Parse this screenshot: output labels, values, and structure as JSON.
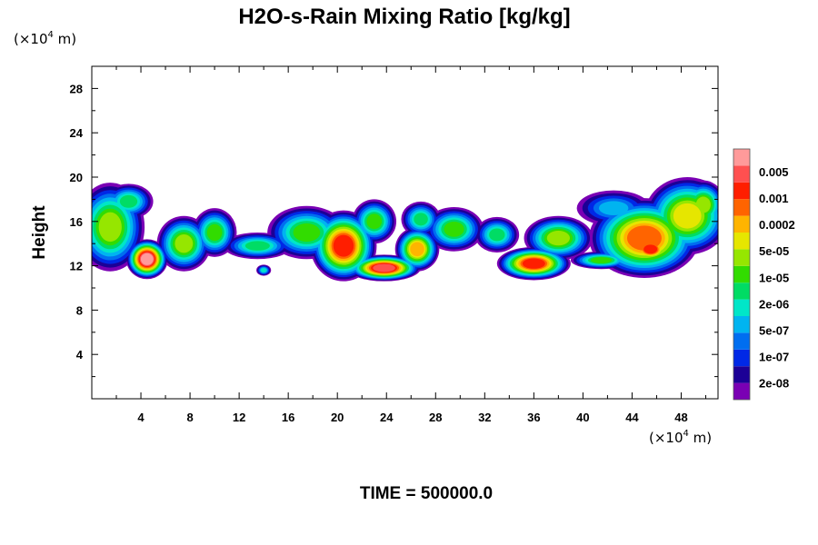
{
  "chart_data": {
    "type": "contour",
    "title": "H2O-s-Rain Mixing Ratio [kg/kg]",
    "ylabel": "Height",
    "x_unit": {
      "prefix": "(×10",
      "exp": "4",
      "suffix": " m)"
    },
    "y_unit": {
      "prefix": "(×10",
      "exp": "4",
      "suffix": " m)"
    },
    "xlim": [
      0,
      51
    ],
    "ylim": [
      0,
      30
    ],
    "x_ticks": [
      4,
      8,
      12,
      16,
      20,
      24,
      28,
      32,
      36,
      40,
      44,
      48
    ],
    "x_tick_labels": [
      "4",
      "8",
      "12",
      "16",
      "20",
      "24",
      "28",
      "32",
      "36",
      "40",
      "44",
      "48"
    ],
    "y_ticks": [
      4,
      8,
      12,
      16,
      20,
      24,
      28
    ],
    "y_tick_labels": [
      "4",
      "8",
      "12",
      "16",
      "20",
      "24",
      "28"
    ],
    "colorbar": {
      "levels": [
        "2e-08",
        "1e-07",
        "5e-07",
        "2e-06",
        "1e-05",
        "5e-05",
        "0.0002",
        "0.001",
        "0.005"
      ],
      "colors": [
        "#7a00b4",
        "#1c0096",
        "#0028e6",
        "#006ef0",
        "#00b4f0",
        "#00e6c8",
        "#00dc64",
        "#32dc00",
        "#96e600",
        "#e6e600",
        "#ffb400",
        "#ff6400",
        "#ff1e00",
        "#ff5050",
        "#ff9a9a"
      ]
    },
    "cloud_band": {
      "x_range": [
        0,
        51
      ],
      "height_range": [
        10.5,
        20
      ],
      "max_regions": [
        {
          "x": 4.5,
          "y": 12.5
        },
        {
          "x": 20.5,
          "y": 12.5
        },
        {
          "x": 23.5,
          "y": 11.5
        },
        {
          "x": 36,
          "y": 12
        },
        {
          "x": 45,
          "y": 13.5
        }
      ]
    },
    "time_label": "TIME = 500000.0"
  }
}
